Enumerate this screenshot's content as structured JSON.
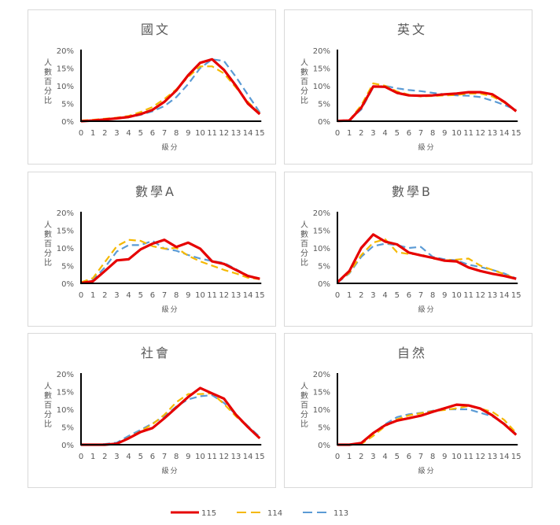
{
  "legend": [
    {
      "name": "115",
      "color": "#e60000",
      "style": "solid"
    },
    {
      "name": "114",
      "color": "#f5b800",
      "style": "dashed"
    },
    {
      "name": "113",
      "color": "#5b9bd5",
      "style": "dashed"
    }
  ],
  "axis": {
    "xlabel": "級分",
    "ylabel_chars": [
      "人",
      "數",
      "百",
      "分",
      "比"
    ],
    "yticks": [
      "0%",
      "5%",
      "10%",
      "15%",
      "20%"
    ],
    "xticks": [
      "0",
      "1",
      "2",
      "3",
      "4",
      "5",
      "6",
      "7",
      "8",
      "9",
      "10",
      "11",
      "12",
      "13",
      "14",
      "15"
    ]
  },
  "chart_data": [
    {
      "type": "line",
      "title": "國文",
      "xlabel": "級分",
      "ylabel": "人數百分比",
      "x": [
        0,
        1,
        2,
        3,
        4,
        5,
        6,
        7,
        8,
        9,
        10,
        11,
        12,
        13,
        14,
        15
      ],
      "ylim": [
        0,
        20
      ],
      "series": [
        {
          "name": "115",
          "values": [
            0.0,
            0.2,
            0.5,
            0.8,
            1.2,
            2.0,
            3.2,
            5.5,
            8.7,
            13.0,
            16.5,
            17.5,
            14.5,
            10.0,
            5.0,
            2.0
          ]
        },
        {
          "name": "114",
          "values": [
            0.2,
            0.4,
            0.7,
            1.0,
            1.5,
            2.6,
            4.0,
            6.3,
            9.0,
            12.5,
            15.5,
            15.5,
            13.5,
            9.5,
            5.5,
            2.2
          ]
        },
        {
          "name": "113",
          "values": [
            0.1,
            0.2,
            0.5,
            0.8,
            1.1,
            1.8,
            2.8,
            4.3,
            6.8,
            10.5,
            15.0,
            17.5,
            17.0,
            12.5,
            7.5,
            2.5
          ]
        }
      ],
      "legend_position": "bottom",
      "grid": false
    },
    {
      "type": "line",
      "title": "英文",
      "xlabel": "級分",
      "ylabel": "人數百分比",
      "x": [
        0,
        1,
        2,
        3,
        4,
        5,
        6,
        7,
        8,
        9,
        10,
        11,
        12,
        13,
        14,
        15
      ],
      "ylim": [
        0,
        20
      ],
      "series": [
        {
          "name": "115",
          "values": [
            0.1,
            0.2,
            3.8,
            9.8,
            9.7,
            8.0,
            7.3,
            7.2,
            7.3,
            7.6,
            7.8,
            8.2,
            8.2,
            7.6,
            5.5,
            2.8
          ]
        },
        {
          "name": "114",
          "values": [
            0.1,
            0.3,
            4.5,
            10.7,
            10.0,
            8.4,
            7.5,
            7.0,
            7.1,
            7.3,
            7.4,
            7.8,
            7.8,
            7.0,
            5.3,
            3.0
          ]
        },
        {
          "name": "113",
          "values": [
            0.1,
            0.4,
            3.3,
            9.6,
            10.0,
            9.3,
            8.8,
            8.5,
            8.0,
            7.6,
            7.3,
            7.2,
            6.8,
            5.8,
            4.6,
            3.2
          ]
        }
      ],
      "legend_position": "bottom",
      "grid": false
    },
    {
      "type": "line",
      "title": "數學A",
      "xlabel": "級分",
      "ylabel": "人數百分比",
      "x": [
        0,
        1,
        2,
        3,
        4,
        5,
        6,
        7,
        8,
        9,
        10,
        11,
        12,
        13,
        14,
        15
      ],
      "ylim": [
        0,
        20
      ],
      "series": [
        {
          "name": "115",
          "values": [
            0.1,
            0.6,
            3.5,
            6.5,
            6.8,
            9.6,
            11.2,
            12.3,
            10.3,
            11.5,
            9.8,
            6.2,
            5.5,
            3.8,
            2.1,
            1.3
          ]
        },
        {
          "name": "114",
          "values": [
            0.3,
            1.5,
            6.0,
            10.5,
            12.3,
            12.0,
            10.5,
            9.8,
            10.0,
            7.8,
            6.2,
            5.0,
            3.8,
            2.8,
            1.6,
            1.2
          ]
        },
        {
          "name": "113",
          "values": [
            0.2,
            1.0,
            4.5,
            9.0,
            10.8,
            10.8,
            12.0,
            9.8,
            9.2,
            8.0,
            7.0,
            6.3,
            5.8,
            4.0,
            2.2,
            1.4
          ]
        }
      ],
      "legend_position": "bottom",
      "grid": false
    },
    {
      "type": "line",
      "title": "數學B",
      "xlabel": "級分",
      "ylabel": "人數百分比",
      "x": [
        0,
        1,
        2,
        3,
        4,
        5,
        6,
        7,
        8,
        9,
        10,
        11,
        12,
        13,
        14,
        15
      ],
      "ylim": [
        0,
        20
      ],
      "series": [
        {
          "name": "115",
          "values": [
            0.3,
            3.5,
            10.0,
            13.8,
            11.8,
            11.0,
            8.7,
            7.9,
            7.2,
            6.4,
            6.2,
            4.5,
            3.5,
            2.7,
            2.1,
            1.3
          ]
        },
        {
          "name": "114",
          "values": [
            0.3,
            3.0,
            8.0,
            11.5,
            12.5,
            8.8,
            8.3,
            8.2,
            7.0,
            6.5,
            6.7,
            7.0,
            5.0,
            3.8,
            2.6,
            1.3
          ]
        },
        {
          "name": "113",
          "values": [
            0.2,
            2.8,
            7.5,
            10.5,
            11.2,
            10.8,
            10.0,
            10.3,
            7.5,
            6.8,
            6.5,
            5.3,
            4.6,
            3.8,
            2.8,
            1.4
          ]
        }
      ],
      "legend_position": "bottom",
      "grid": false
    },
    {
      "type": "line",
      "title": "社會",
      "xlabel": "級分",
      "ylabel": "人數百分比",
      "x": [
        0,
        1,
        2,
        3,
        4,
        5,
        6,
        7,
        8,
        9,
        10,
        11,
        12,
        13,
        14,
        15
      ],
      "ylim": [
        0,
        20
      ],
      "series": [
        {
          "name": "115",
          "values": [
            0.0,
            0.0,
            0.0,
            0.3,
            1.8,
            3.6,
            4.7,
            7.5,
            10.5,
            13.5,
            16.0,
            14.5,
            13.0,
            8.5,
            5.0,
            1.8
          ]
        },
        {
          "name": "114",
          "values": [
            0.0,
            0.0,
            0.1,
            0.3,
            2.0,
            3.8,
            5.8,
            8.5,
            12.0,
            14.3,
            14.3,
            14.5,
            11.5,
            8.0,
            5.0,
            1.8
          ]
        },
        {
          "name": "113",
          "values": [
            0.0,
            0.0,
            0.2,
            0.6,
            2.5,
            4.2,
            6.0,
            8.0,
            10.8,
            12.8,
            13.7,
            14.0,
            11.8,
            8.5,
            5.3,
            2.2
          ]
        }
      ],
      "legend_position": "bottom",
      "grid": false
    },
    {
      "type": "line",
      "title": "自然",
      "xlabel": "級分",
      "ylabel": "人數百分比",
      "x": [
        0,
        1,
        2,
        3,
        4,
        5,
        6,
        7,
        8,
        9,
        10,
        11,
        12,
        13,
        14,
        15
      ],
      "ylim": [
        0,
        20
      ],
      "series": [
        {
          "name": "115",
          "values": [
            0.0,
            0.0,
            0.5,
            3.3,
            5.5,
            6.8,
            7.5,
            8.2,
            9.3,
            10.3,
            11.3,
            11.1,
            10.2,
            8.3,
            5.8,
            2.8
          ]
        },
        {
          "name": "114",
          "values": [
            0.0,
            0.0,
            0.2,
            2.5,
            5.2,
            7.2,
            8.3,
            8.9,
            9.5,
            9.8,
            10.3,
            10.9,
            10.2,
            9.3,
            7.0,
            3.3
          ]
        },
        {
          "name": "113",
          "values": [
            0.0,
            0.0,
            0.4,
            3.2,
            5.8,
            7.8,
            8.6,
            9.0,
            9.6,
            10.0,
            10.0,
            10.0,
            9.0,
            8.0,
            6.0,
            3.0
          ]
        }
      ],
      "legend_position": "bottom",
      "grid": false
    }
  ]
}
